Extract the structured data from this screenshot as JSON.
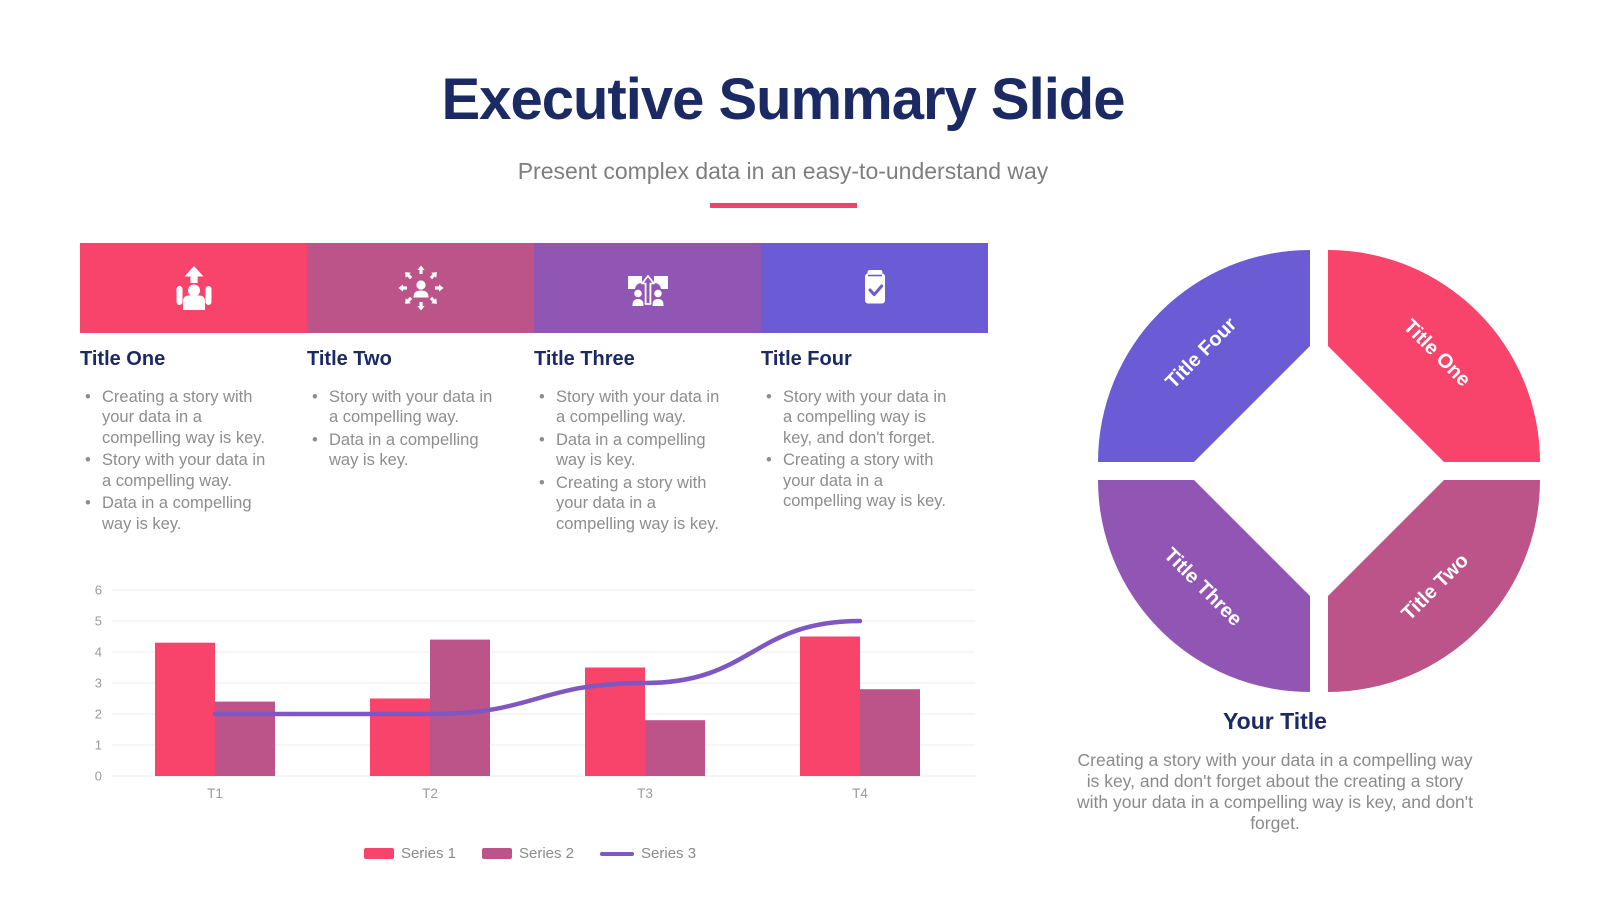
{
  "header": {
    "title": "Executive Summary Slide",
    "subtitle": "Present complex data in an easy-to-understand way"
  },
  "palette": {
    "pink": "#F8436A",
    "mauve": "#BD5489",
    "purple": "#9156B4",
    "violet": "#6B5CD6",
    "line_purple": "#7E57C2",
    "navy": "#1B2A63",
    "accent_underline": "#E8476B",
    "body_gray": "#8D8D8D",
    "axis_gray": "#9A9A9A",
    "grid_gray": "#ECECEC"
  },
  "columns": [
    {
      "title": "Title One",
      "icon": "team-growth-icon",
      "color": "#F8436A",
      "bullets": [
        "Creating a story with your data in a compelling way is key.",
        "Story with your data in a compelling way.",
        "Data in a compelling way is key."
      ]
    },
    {
      "title": "Title Two",
      "icon": "people-expand-icon",
      "color": "#BD5489",
      "bullets": [
        "Story with your data in a compelling way.",
        "Data in a compelling way is key."
      ]
    },
    {
      "title": "Title Three",
      "icon": "decision-paths-icon",
      "color": "#9156B4",
      "bullets": [
        "Story with your data in a compelling way.",
        "Data in a compelling way is key.",
        "Creating a story with your data in a compelling way is key."
      ]
    },
    {
      "title": "Title Four",
      "icon": "clipboard-check-icon",
      "color": "#6B5CD6",
      "bullets": [
        "Story with your data in a compelling way is key, and don't forget.",
        "Creating a story with your data in a compelling way is key."
      ]
    }
  ],
  "chart_data": {
    "type": "bar",
    "subtype": "combo-bar-line",
    "categories": [
      "T1",
      "T2",
      "T3",
      "T4"
    ],
    "series": [
      {
        "name": "Series 1",
        "render": "bar",
        "color": "#F8436A",
        "values": [
          4.3,
          2.5,
          3.5,
          4.5
        ]
      },
      {
        "name": "Series 2",
        "render": "bar",
        "color": "#BD5489",
        "values": [
          2.4,
          4.4,
          1.8,
          2.8
        ]
      },
      {
        "name": "Series 3",
        "render": "line",
        "color": "#7E57C2",
        "values": [
          2,
          2,
          3,
          5
        ]
      }
    ],
    "title": "",
    "xlabel": "",
    "ylabel": "",
    "ylim": [
      0,
      6
    ],
    "yticks": [
      0,
      1,
      2,
      3,
      4,
      5,
      6
    ],
    "grid": true,
    "legend_position": "bottom"
  },
  "cycle": {
    "segments": [
      {
        "label": "Title One",
        "position": "top-right",
        "color": "#F8436A"
      },
      {
        "label": "Title Two",
        "position": "bottom-right",
        "color": "#BD5489"
      },
      {
        "label": "Title Three",
        "position": "bottom-left",
        "color": "#9156B4"
      },
      {
        "label": "Title Four",
        "position": "top-left",
        "color": "#6B5CD6"
      }
    ]
  },
  "footer": {
    "title": "Your Title",
    "text": "Creating a story with your data in a compelling way is key, and don't forget about the creating a story with your data in a compelling way is key, and don't forget."
  }
}
